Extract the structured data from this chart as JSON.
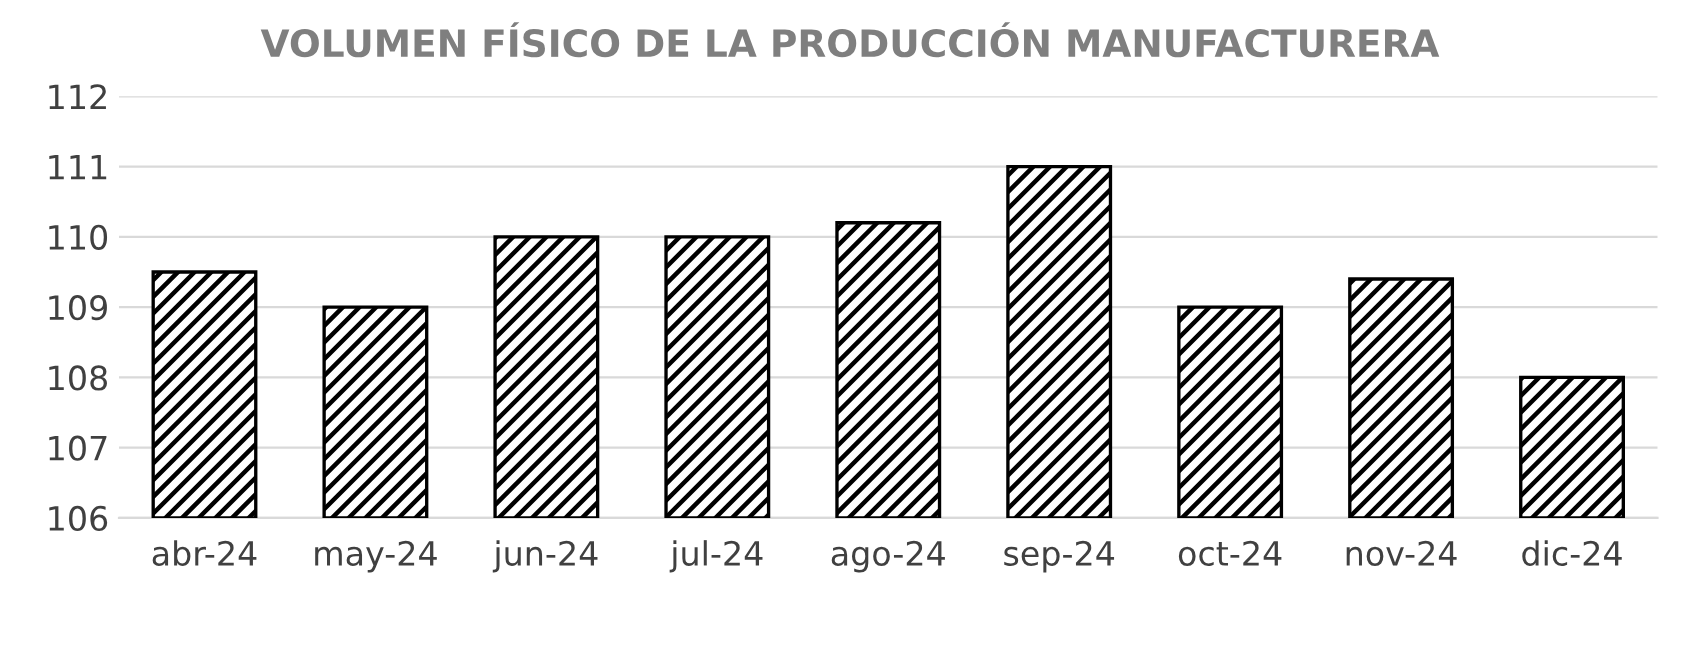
{
  "chart_data": {
    "type": "bar",
    "title": "VOLUMEN FÍSICO DE LA PRODUCCIÓN MANUFACTURERA",
    "categories": [
      "abr-24",
      "may-24",
      "jun-24",
      "jul-24",
      "ago-24",
      "sep-24",
      "oct-24",
      "nov-24",
      "dic-24"
    ],
    "values": [
      109.5,
      109.0,
      110.0,
      110.0,
      110.2,
      111.0,
      109.0,
      109.4,
      108.0
    ],
    "color": "#000000",
    "ylim": [
      106,
      112
    ],
    "yticks": [
      106,
      107,
      108,
      109,
      110,
      111,
      112
    ],
    "grid": "y",
    "legend": false
  }
}
